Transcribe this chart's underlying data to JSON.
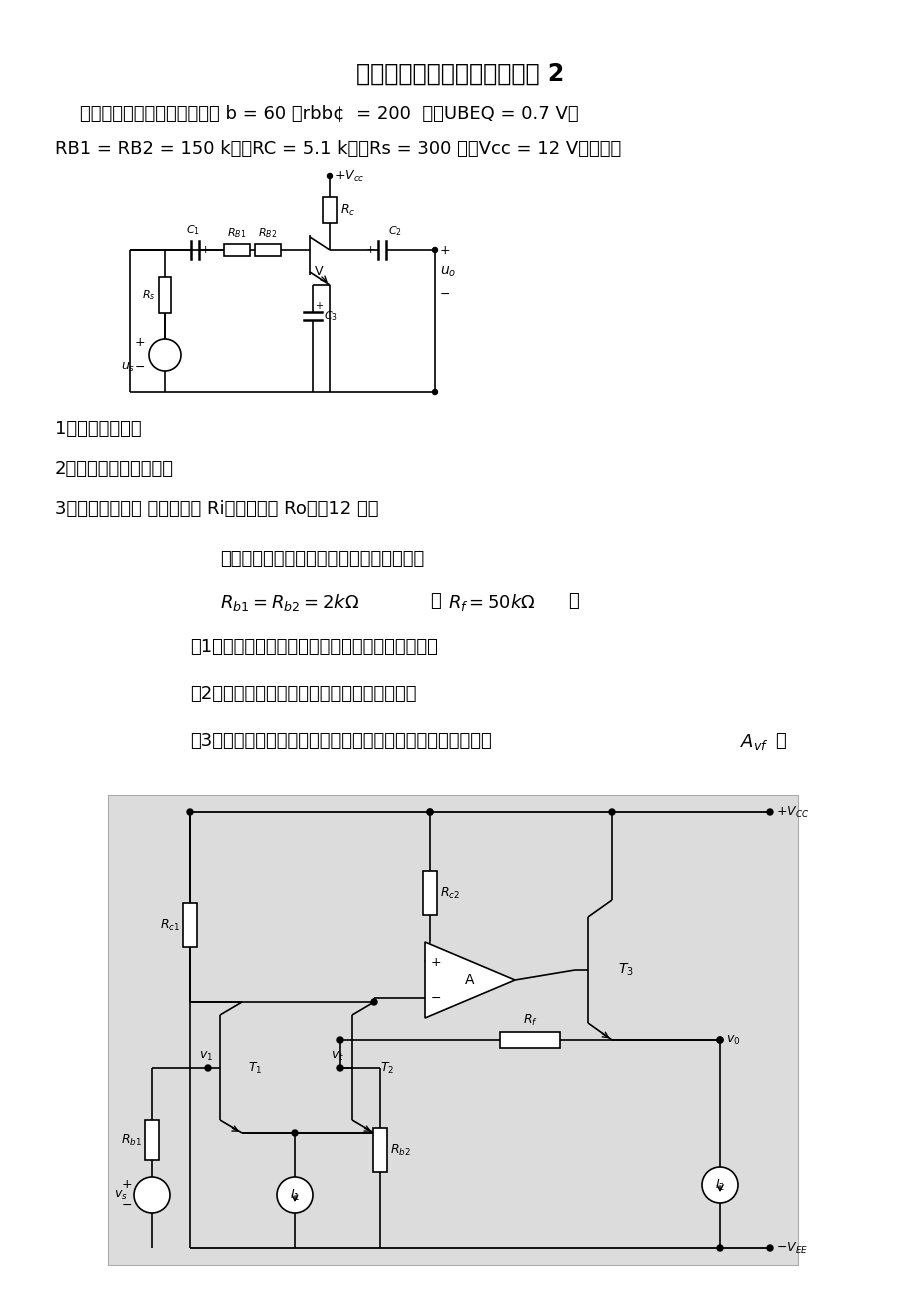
{
  "title": "东南大学电子技术基础模拟题 2",
  "line1a": "一、已知图示电路中的三极管 b = 60 ，rbb¢  = 200  欧，UBEQ = 0.7 V，",
  "line2a": "RB1 = RB2 = 150 k欧，RC = 5.1 k欧，Rs = 300 欧，Vcc = 12 V。试求：",
  "item1": "1．静态工作点；",
  "item2": "2．画出微变等效电路；",
  "item3": "3．电压放大倍数 及输入电阿 Ri、输出电阿 Ro。（12 分）",
  "intro": "如图所示电路是一个多级放大电路，其中，",
  "q1": "（1）试分析哪些电阿组成多级放大电路的反馈网络",
  "q2": "（2）该电路引入了何种反馈（极性和组态）；",
  "q3": "（3）设电路满足深度负反馈条件，计算该电路的闭环电压增益",
  "bg_color": "#ffffff",
  "text_color": "#000000"
}
